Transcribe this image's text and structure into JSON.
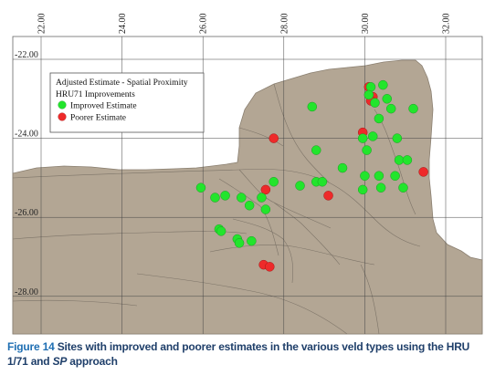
{
  "legend": {
    "title_line1": "Adjusted Estimate - Spatial Proximity",
    "title_line2": "HRU71 Improvements",
    "items": [
      {
        "label": "Improved Estimate",
        "color": "#22e52c"
      },
      {
        "label": "Poorer Estimate",
        "color": "#ee2a2a"
      }
    ]
  },
  "axes": {
    "longitude_ticks": [
      "22.00",
      "24.00",
      "26.00",
      "28.00",
      "30.00",
      "32.00"
    ],
    "latitude_ticks": [
      "-22.00",
      "-24.00",
      "-26.00",
      "-28.00"
    ]
  },
  "colors": {
    "land": "#b3a694",
    "background": "#ffffff",
    "boundaries": "#7d7468",
    "graticule": "#444444"
  },
  "sites": {
    "improved": [
      [
        30.15,
        -22.7
      ],
      [
        30.45,
        -22.65
      ],
      [
        30.1,
        -22.9
      ],
      [
        30.55,
        -23.0
      ],
      [
        30.25,
        -23.1
      ],
      [
        28.7,
        -23.2
      ],
      [
        30.65,
        -23.25
      ],
      [
        31.2,
        -23.25
      ],
      [
        30.35,
        -23.5
      ],
      [
        29.95,
        -24.0
      ],
      [
        30.2,
        -23.95
      ],
      [
        30.8,
        -24.0
      ],
      [
        28.8,
        -24.3
      ],
      [
        30.05,
        -24.3
      ],
      [
        30.85,
        -24.55
      ],
      [
        31.05,
        -24.55
      ],
      [
        29.45,
        -24.75
      ],
      [
        30.0,
        -24.95
      ],
      [
        30.35,
        -24.95
      ],
      [
        30.75,
        -24.95
      ],
      [
        28.4,
        -25.2
      ],
      [
        28.8,
        -25.1
      ],
      [
        28.95,
        -25.1
      ],
      [
        30.4,
        -25.25
      ],
      [
        29.95,
        -25.3
      ],
      [
        30.95,
        -25.25
      ],
      [
        25.95,
        -25.25
      ],
      [
        27.75,
        -25.1
      ],
      [
        26.3,
        -25.5
      ],
      [
        26.55,
        -25.45
      ],
      [
        26.95,
        -25.5
      ],
      [
        27.45,
        -25.5
      ],
      [
        27.15,
        -25.7
      ],
      [
        27.55,
        -25.8
      ],
      [
        26.4,
        -26.3
      ],
      [
        26.45,
        -26.35
      ],
      [
        26.85,
        -26.55
      ],
      [
        26.9,
        -26.65
      ],
      [
        27.2,
        -26.6
      ]
    ],
    "poorer": [
      [
        30.1,
        -22.7
      ],
      [
        30.2,
        -22.95
      ],
      [
        30.15,
        -23.05
      ],
      [
        29.95,
        -23.85
      ],
      [
        27.75,
        -24.0
      ],
      [
        31.45,
        -24.85
      ],
      [
        29.1,
        -25.45
      ],
      [
        27.55,
        -25.3
      ],
      [
        27.5,
        -27.2
      ],
      [
        27.65,
        -27.25
      ]
    ]
  },
  "caption": {
    "figure_label": "Figure 14",
    "text_part1": " Sites with improved and poorer estimates in the various veld types using the HRU 1/71 and ",
    "text_em": "SP",
    "text_part2": " approach"
  }
}
